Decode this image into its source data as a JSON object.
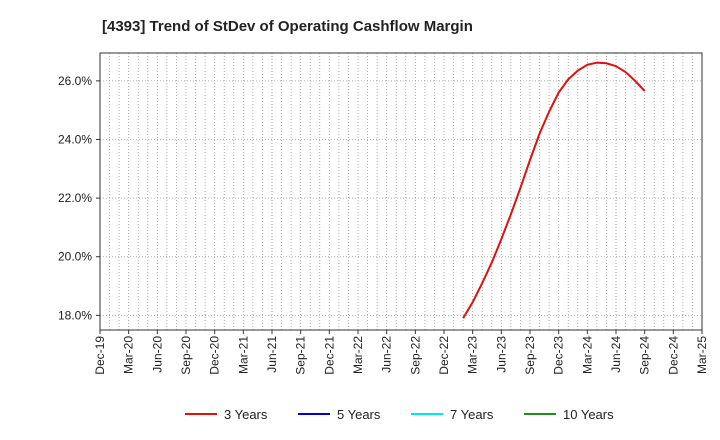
{
  "chart_data": {
    "type": "line",
    "title": "[4393]  Trend of StDev of Operating Cashflow Margin",
    "xlabel": "",
    "ylabel": "",
    "x_ticks": [
      "Dec-19",
      "Mar-20",
      "Jun-20",
      "Sep-20",
      "Dec-20",
      "Mar-21",
      "Jun-21",
      "Sep-21",
      "Dec-21",
      "Mar-22",
      "Jun-22",
      "Sep-22",
      "Dec-22",
      "Mar-23",
      "Jun-23",
      "Sep-23",
      "Dec-23",
      "Mar-24",
      "Jun-24",
      "Sep-24",
      "Dec-24",
      "Mar-25"
    ],
    "x_lim": [
      "Dec-19",
      "Mar-25"
    ],
    "y_ticks": [
      18.0,
      20.0,
      22.0,
      24.0,
      26.0
    ],
    "y_tick_labels": [
      "18.0%",
      "20.0%",
      "22.0%",
      "24.0%",
      "26.0%"
    ],
    "ylim": [
      17.5,
      26.95
    ],
    "grid": true,
    "legend_position": "bottom",
    "series": [
      {
        "name": "3 Years",
        "color": "#dd1111",
        "x": [
          "Feb-23",
          "Mar-23",
          "Apr-23",
          "May-23",
          "Jun-23",
          "Jul-23",
          "Aug-23",
          "Sep-23",
          "Oct-23",
          "Nov-23",
          "Dec-23",
          "Jan-24",
          "Feb-24",
          "Mar-24",
          "Apr-24",
          "May-24",
          "Jun-24",
          "Jul-24",
          "Aug-24",
          "Sep-24"
        ],
        "values": [
          17.9,
          18.45,
          19.1,
          19.8,
          20.6,
          21.45,
          22.35,
          23.3,
          24.2,
          24.95,
          25.6,
          26.05,
          26.35,
          26.55,
          26.62,
          26.6,
          26.5,
          26.3,
          26.0,
          25.65
        ]
      },
      {
        "name": "5 Years",
        "color": "#0000cc",
        "x": [],
        "values": []
      },
      {
        "name": "7 Years",
        "color": "#00e5ee",
        "x": [],
        "values": []
      },
      {
        "name": "10 Years",
        "color": "#228b22",
        "x": [],
        "values": []
      }
    ]
  }
}
